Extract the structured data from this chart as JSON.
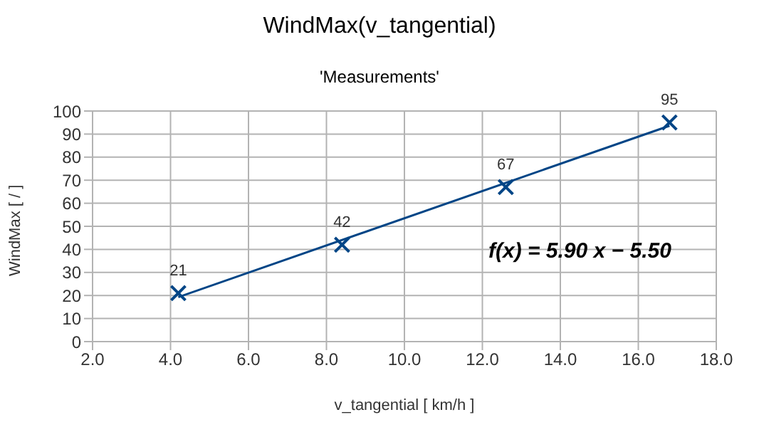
{
  "chart_data": {
    "type": "scatter",
    "title": "WindMax(v_tangential)",
    "subtitle": "'Measurements'",
    "xlabel": "v_tangential [ km/h ]",
    "ylabel": "WindMax [ / ]",
    "series": [
      {
        "color": "#004586",
        "x": [
          4.2,
          8.4,
          12.6,
          16.8
        ],
        "values": [
          21,
          42,
          67,
          95
        ],
        "marker": "cross",
        "data_labels": true
      },
      {
        "type": "line",
        "color": "#004586",
        "x": [
          4.2,
          16.8
        ],
        "values": [
          19.3,
          93.6
        ],
        "marker": "none"
      }
    ],
    "annotations": [
      "f(x) = 5.90 x − 5.50"
    ],
    "xlim": [
      2,
      18
    ],
    "xticks": [
      {
        "value": 2,
        "label": "2.0"
      },
      {
        "value": 4,
        "label": "4.0"
      },
      {
        "value": 6,
        "label": "6.0"
      },
      {
        "value": 8,
        "label": "8.0"
      },
      {
        "value": 10,
        "label": "10.0"
      },
      {
        "value": 12,
        "label": "12.0"
      },
      {
        "value": 14,
        "label": "14.0"
      },
      {
        "value": 16,
        "label": "16.0"
      },
      {
        "value": 18,
        "label": "18.0"
      }
    ],
    "ylim": [
      0,
      100
    ],
    "yticks": [
      0,
      10,
      20,
      30,
      40,
      50,
      60,
      70,
      80,
      90,
      100
    ],
    "grid": true
  }
}
